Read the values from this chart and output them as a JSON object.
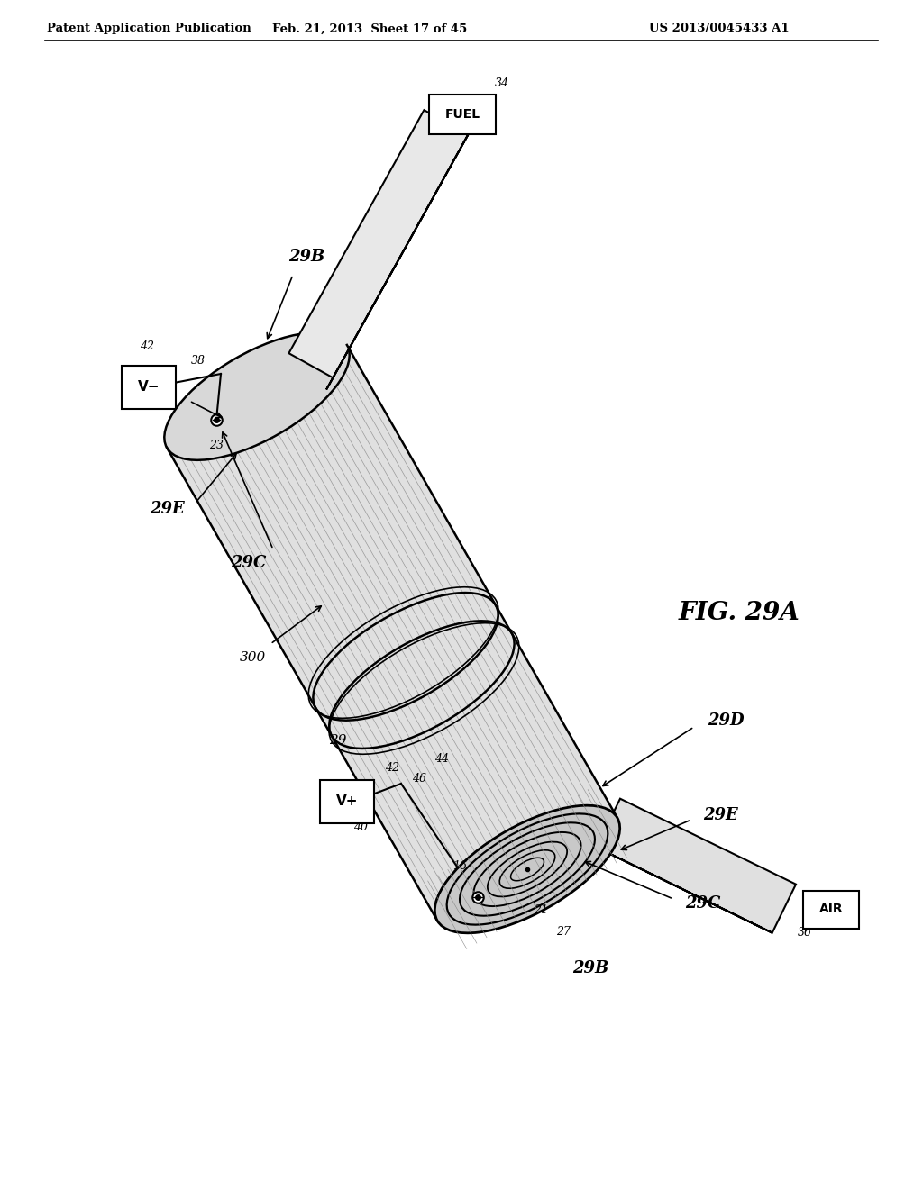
{
  "title_left": "Patent Application Publication",
  "title_center": "Feb. 21, 2013  Sheet 17 of 45",
  "title_right": "US 2013/0045433 A1",
  "fig_label": "FIG. 29A",
  "background_color": "#ffffff",
  "line_color": "#000000",
  "body_fill": "#e8e8e8",
  "body_fill_dark": "#d0d0d0",
  "stripe_color": "#aaaaaa",
  "face_fill": "#d8d8d8"
}
